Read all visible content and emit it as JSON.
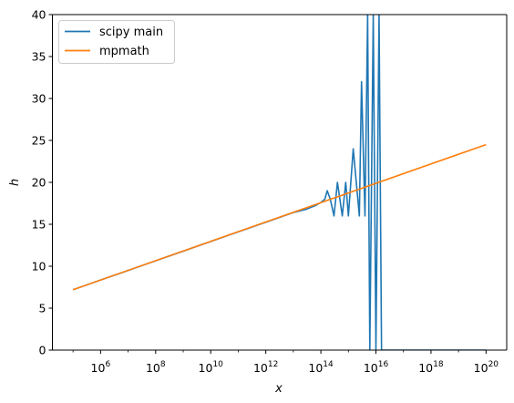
{
  "chart_data": {
    "type": "line",
    "xlabel": "x",
    "ylabel": "h",
    "xscale": "log",
    "xlim": [
      100000.0,
      1e+20
    ],
    "ylim": [
      0,
      40
    ],
    "grid": false,
    "legend_position": "upper-left",
    "y_ticks": [
      "0",
      "5",
      "10",
      "15",
      "20",
      "25",
      "30",
      "35",
      "40"
    ],
    "x_ticks": [
      {
        "base": "10",
        "exp": "6",
        "value": 1000000.0
      },
      {
        "base": "10",
        "exp": "8",
        "value": 100000000.0
      },
      {
        "base": "10",
        "exp": "10",
        "value": 10000000000.0
      },
      {
        "base": "10",
        "exp": "12",
        "value": 1000000000000.0
      },
      {
        "base": "10",
        "exp": "14",
        "value": 100000000000000.0
      },
      {
        "base": "10",
        "exp": "16",
        "value": 1e+16
      },
      {
        "base": "10",
        "exp": "18",
        "value": 1e+18
      },
      {
        "base": "10",
        "exp": "20",
        "value": 1e+20
      }
    ],
    "series": [
      {
        "name": "scipy main",
        "color": "#1f77b4",
        "x": [
          100000.0,
          1000000.0,
          10000000.0,
          100000000.0,
          1000000000.0,
          10000000000.0,
          100000000000.0,
          1000000000000.0,
          10000000000000.0,
          30000000000000.0,
          60000000000000.0,
          100000000000000.0,
          140000000000000.0,
          170000000000000.0,
          220000000000000.0,
          300000000000000.0,
          400000000000000.0,
          600000000000000.0,
          800000000000000.0,
          1000000000000000.0,
          1500000000000000.0,
          2500000000000000.0,
          3000000000000000.0,
          4000000000000000.0,
          5000000000000000.0,
          6000000000000000.0,
          8000000000000000.0,
          1e+16,
          1.3e+16,
          1.6e+16,
          2e+16,
          1e+17,
          1e+18,
          1e+19,
          1e+20
        ],
        "y": [
          7.2,
          8.35,
          9.5,
          10.65,
          11.8,
          12.95,
          14.1,
          15.25,
          16.4,
          16.8,
          17.2,
          17.6,
          18.0,
          19.0,
          18.0,
          16.0,
          20.0,
          16.0,
          20.0,
          16.0,
          24.0,
          16.0,
          32.0,
          16.0,
          40.0,
          0.0,
          40.0,
          0.0,
          40.0,
          0.0,
          0.0,
          0.0,
          0.0,
          0.0,
          0.0
        ]
      },
      {
        "name": "mpmath",
        "color": "#ff7f0e",
        "x": [
          100000.0,
          1e+20
        ],
        "y": [
          7.2,
          24.5
        ]
      }
    ]
  }
}
